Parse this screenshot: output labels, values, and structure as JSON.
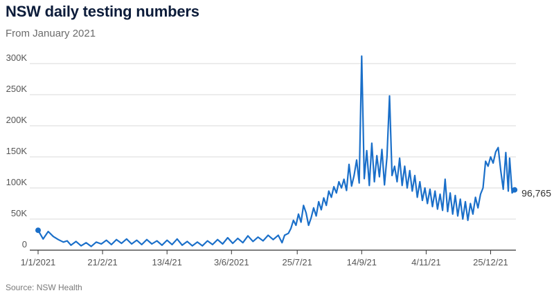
{
  "title": "NSW daily testing numbers",
  "subtitle": "From January 2021",
  "source": "Source: NSW Health",
  "colors": {
    "line": "#1a6fc9",
    "grid": "#d9d9d9",
    "axis": "#333333"
  },
  "chart_data": {
    "type": "line",
    "title": "NSW daily testing numbers",
    "subtitle": "From January 2021",
    "xlabel": "",
    "ylabel": "",
    "x_range": [
      "1/1/2021",
      "4/1/2022"
    ],
    "ylim": [
      0,
      310000
    ],
    "yticks": [
      0,
      50000,
      100000,
      150000,
      200000,
      250000,
      300000
    ],
    "ytick_labels": [
      "0",
      "50K",
      "100K",
      "150K",
      "200K",
      "250K",
      "300K"
    ],
    "xticks": [
      "1/1/2021",
      "21/2/21",
      "13/4/21",
      "3/6/2021",
      "25/7/21",
      "14/9/21",
      "4/11/21",
      "25/12/21"
    ],
    "xtick_days": [
      0,
      51,
      102,
      153,
      205,
      256,
      307,
      358
    ],
    "grid": true,
    "end_label": "96,765",
    "series": [
      {
        "values": [
          [
            0,
            32000
          ],
          [
            4,
            18000
          ],
          [
            8,
            30000
          ],
          [
            12,
            22000
          ],
          [
            16,
            17000
          ],
          [
            20,
            13000
          ],
          [
            23,
            15000
          ],
          [
            26,
            8000
          ],
          [
            30,
            14000
          ],
          [
            34,
            7000
          ],
          [
            38,
            12000
          ],
          [
            42,
            6000
          ],
          [
            46,
            13000
          ],
          [
            50,
            10000
          ],
          [
            54,
            16000
          ],
          [
            58,
            9000
          ],
          [
            62,
            17000
          ],
          [
            66,
            11000
          ],
          [
            70,
            18000
          ],
          [
            74,
            10000
          ],
          [
            78,
            16000
          ],
          [
            82,
            9000
          ],
          [
            86,
            17000
          ],
          [
            90,
            10000
          ],
          [
            94,
            15000
          ],
          [
            98,
            8000
          ],
          [
            102,
            16000
          ],
          [
            106,
            9000
          ],
          [
            110,
            18000
          ],
          [
            114,
            8000
          ],
          [
            118,
            14000
          ],
          [
            122,
            7000
          ],
          [
            126,
            13000
          ],
          [
            130,
            7000
          ],
          [
            134,
            15000
          ],
          [
            138,
            9000
          ],
          [
            142,
            17000
          ],
          [
            146,
            10000
          ],
          [
            150,
            20000
          ],
          [
            154,
            11000
          ],
          [
            158,
            19000
          ],
          [
            162,
            12000
          ],
          [
            166,
            23000
          ],
          [
            170,
            14000
          ],
          [
            174,
            21000
          ],
          [
            178,
            15000
          ],
          [
            182,
            24000
          ],
          [
            186,
            17000
          ],
          [
            190,
            24000
          ],
          [
            193,
            12000
          ],
          [
            195,
            24000
          ],
          [
            198,
            27000
          ],
          [
            200,
            35000
          ],
          [
            202,
            48000
          ],
          [
            204,
            40000
          ],
          [
            206,
            58000
          ],
          [
            208,
            45000
          ],
          [
            210,
            72000
          ],
          [
            212,
            60000
          ],
          [
            214,
            40000
          ],
          [
            216,
            52000
          ],
          [
            218,
            68000
          ],
          [
            220,
            55000
          ],
          [
            222,
            78000
          ],
          [
            224,
            65000
          ],
          [
            226,
            84000
          ],
          [
            228,
            72000
          ],
          [
            230,
            95000
          ],
          [
            232,
            85000
          ],
          [
            234,
            102000
          ],
          [
            236,
            92000
          ],
          [
            238,
            110000
          ],
          [
            240,
            100000
          ],
          [
            242,
            114000
          ],
          [
            244,
            96000
          ],
          [
            246,
            138000
          ],
          [
            248,
            103000
          ],
          [
            250,
            120000
          ],
          [
            252,
            145000
          ],
          [
            254,
            108000
          ],
          [
            256,
            312000
          ],
          [
            258,
            115000
          ],
          [
            260,
            160000
          ],
          [
            262,
            104000
          ],
          [
            264,
            172000
          ],
          [
            266,
            110000
          ],
          [
            268,
            152000
          ],
          [
            270,
            118000
          ],
          [
            272,
            162000
          ],
          [
            274,
            105000
          ],
          [
            276,
            150000
          ],
          [
            278,
            248000
          ],
          [
            280,
            120000
          ],
          [
            282,
            135000
          ],
          [
            284,
            110000
          ],
          [
            286,
            148000
          ],
          [
            288,
            104000
          ],
          [
            290,
            135000
          ],
          [
            292,
            100000
          ],
          [
            294,
            128000
          ],
          [
            296,
            95000
          ],
          [
            298,
            120000
          ],
          [
            300,
            85000
          ],
          [
            302,
            110000
          ],
          [
            304,
            80000
          ],
          [
            306,
            100000
          ],
          [
            308,
            75000
          ],
          [
            310,
            98000
          ],
          [
            312,
            70000
          ],
          [
            314,
            95000
          ],
          [
            316,
            66000
          ],
          [
            318,
            90000
          ],
          [
            320,
            64000
          ],
          [
            322,
            114000
          ],
          [
            324,
            62000
          ],
          [
            326,
            92000
          ],
          [
            328,
            58000
          ],
          [
            330,
            88000
          ],
          [
            332,
            55000
          ],
          [
            334,
            82000
          ],
          [
            336,
            50000
          ],
          [
            338,
            78000
          ],
          [
            340,
            48000
          ],
          [
            342,
            75000
          ],
          [
            344,
            58000
          ],
          [
            346,
            85000
          ],
          [
            348,
            68000
          ],
          [
            350,
            90000
          ],
          [
            352,
            100000
          ],
          [
            354,
            143000
          ],
          [
            356,
            135000
          ],
          [
            358,
            150000
          ],
          [
            360,
            140000
          ],
          [
            362,
            158000
          ],
          [
            364,
            165000
          ],
          [
            366,
            128000
          ],
          [
            368,
            98000
          ],
          [
            370,
            157000
          ],
          [
            372,
            95000
          ],
          [
            373,
            148000
          ],
          [
            375,
            92000
          ],
          [
            377,
            97000
          ]
        ]
      }
    ]
  }
}
